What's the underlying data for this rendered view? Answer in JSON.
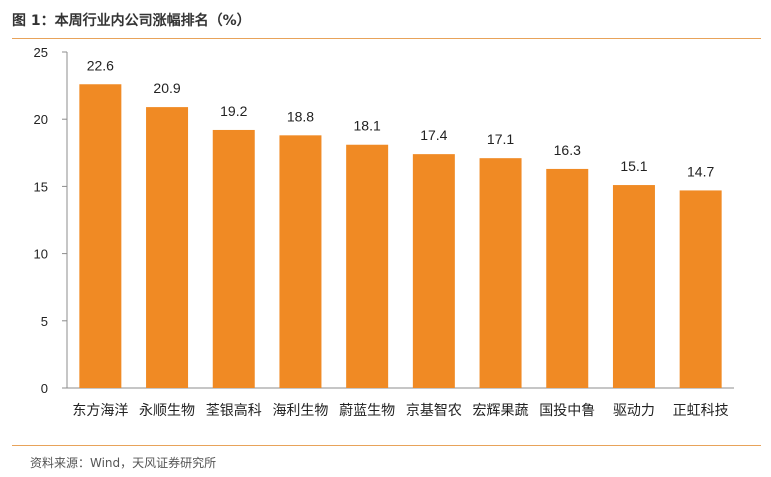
{
  "header": {
    "title": "图 1：本周行业内公司涨幅排名（%）"
  },
  "footer": {
    "source": "资料来源：Wind，天风证券研究所"
  },
  "chart_data": {
    "type": "bar",
    "title": "图 1：本周行业内公司涨幅排名（%）",
    "xlabel": "",
    "ylabel": "",
    "ylim": [
      0,
      25
    ],
    "yticks": [
      0,
      5,
      10,
      15,
      20,
      25
    ],
    "grid": false,
    "legend": "none",
    "bar_color": "#F08A24",
    "categories": [
      "东方海洋",
      "永顺生物",
      "荃银高科",
      "海利生物",
      "蔚蓝生物",
      "京基智农",
      "宏辉果蔬",
      "国投中鲁",
      "驱动力",
      "正虹科技"
    ],
    "values": [
      22.6,
      20.9,
      19.2,
      18.8,
      18.1,
      17.4,
      17.1,
      16.3,
      15.1,
      14.7
    ],
    "value_labels": [
      "22.6",
      "20.9",
      "19.2",
      "18.8",
      "18.1",
      "17.4",
      "17.1",
      "16.3",
      "15.1",
      "14.7"
    ]
  }
}
